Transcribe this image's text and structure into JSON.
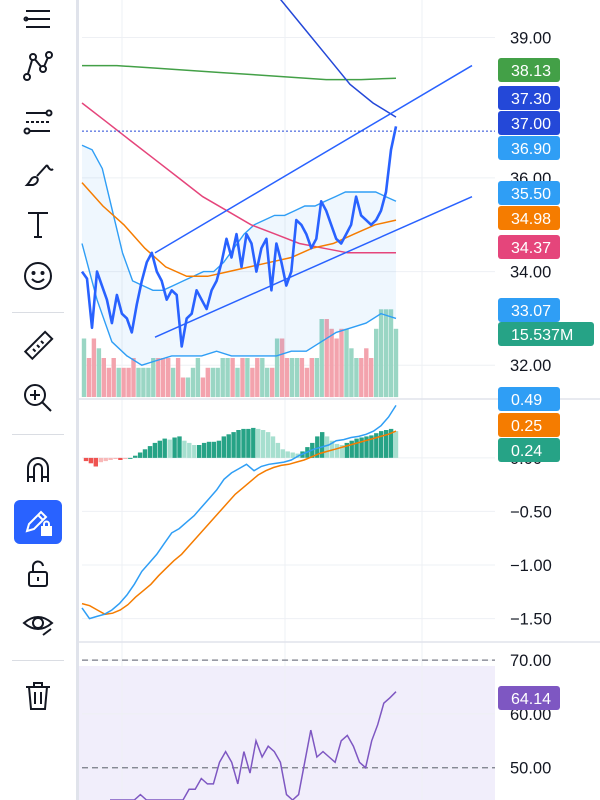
{
  "toolbar": {
    "tools": [
      {
        "name": "lines-tool-icon",
        "active": false
      },
      {
        "name": "pattern-tool-icon",
        "active": false
      },
      {
        "name": "fib-tool-icon",
        "active": false
      },
      {
        "name": "brush-tool-icon",
        "active": false
      },
      {
        "name": "text-tool-icon",
        "active": false
      },
      {
        "name": "emoji-tool-icon",
        "active": false
      },
      {
        "name": "ruler-icon",
        "active": false
      },
      {
        "name": "zoom-in-icon",
        "active": false
      },
      {
        "name": "magnet-icon",
        "active": false
      },
      {
        "name": "lock-drawing-mode-icon",
        "active": true
      },
      {
        "name": "unlock-icon",
        "active": false
      },
      {
        "name": "eye-icon",
        "active": false
      },
      {
        "name": "trash-icon",
        "active": false
      }
    ]
  },
  "chart_data": [
    {
      "type": "line",
      "pane": "price",
      "ylim": [
        31.3,
        39.8
      ],
      "axis_ticks": [
        "39.00",
        "36.00",
        "34.00",
        "32.00"
      ],
      "axis_tick_values": [
        39.0,
        36.0,
        34.0,
        32.0
      ],
      "close": [
        34.0,
        33.85,
        32.8,
        34.0,
        33.7,
        33.4,
        32.9,
        33.5,
        33.1,
        33.0,
        32.7,
        33.3,
        33.8,
        34.2,
        34.4,
        34.0,
        33.8,
        33.4,
        33.6,
        33.5,
        32.4,
        33.0,
        33.1,
        33.6,
        33.4,
        33.2,
        33.6,
        33.8,
        34.2,
        34.7,
        34.3,
        34.8,
        34.1,
        34.8,
        34.6,
        34.0,
        34.5,
        34.7,
        33.6,
        34.6,
        34.2,
        33.7,
        34.0,
        35.1,
        35.0,
        34.8,
        34.5,
        34.7,
        35.5,
        35.3,
        35.0,
        34.7,
        34.6,
        34.8,
        35.0,
        35.6,
        35.2,
        35.1,
        35.0,
        35.1,
        35.3,
        35.7,
        36.6,
        37.1
      ],
      "upper_band": [
        36.7,
        36.6,
        36.2,
        35.3,
        34.4,
        33.8,
        33.7,
        33.6,
        33.6,
        33.7,
        33.8,
        33.9,
        34.0,
        34.0,
        34.2,
        34.5,
        34.8,
        35.0,
        35.1,
        35.2,
        35.2,
        35.3,
        35.4,
        35.4,
        35.5,
        35.6,
        35.7,
        35.7,
        35.7,
        35.7,
        35.6,
        35.5
      ],
      "lower_band": [
        34.6,
        33.4,
        32.5,
        32.2,
        32.0,
        32.1,
        32.2,
        32.2,
        32.2,
        32.3,
        32.2,
        32.2,
        32.2,
        32.2,
        32.3,
        32.3,
        32.5,
        32.7,
        32.8,
        32.9,
        33.1,
        33.0
      ],
      "channel": {
        "upper": [
          [
            34.4,
            35.9
          ],
          [
            34.6,
            38.4
          ]
        ],
        "lower": [
          [
            32.6,
            33.1
          ],
          [
            34.9,
            35.6
          ]
        ]
      },
      "ma_red": [
        37.6,
        37.2,
        36.8,
        36.4,
        36.0,
        35.6,
        35.3,
        35.0,
        34.8,
        34.6,
        34.5,
        34.4,
        34.4,
        34.4
      ],
      "ma_orange": [
        35.9,
        35.4,
        35.0,
        34.5,
        34.1,
        33.9,
        33.9,
        34.0,
        34.1,
        34.2,
        34.3,
        34.5,
        34.6,
        34.8,
        35.0,
        35.1
      ],
      "ma_green": [
        38.4,
        38.4,
        38.35,
        38.3,
        38.25,
        38.2,
        38.15,
        38.1,
        38.1,
        38.13
      ],
      "ma_navy": [
        41.0,
        40.4,
        39.8,
        39.2,
        38.6,
        38.0,
        37.6,
        37.3
      ],
      "volume_hist": [
        3,
        2,
        3,
        2.5,
        2,
        1.5,
        2,
        1.5,
        1.5,
        1.5,
        2,
        1.5,
        1.5,
        1.5,
        2,
        2,
        2,
        2,
        1.5,
        2,
        1,
        1,
        1.5,
        2,
        1,
        1.5,
        1.5,
        1.5,
        2,
        2,
        2,
        1.5,
        2,
        2,
        1.5,
        2,
        2,
        1.5,
        1.5,
        3,
        3,
        2,
        2,
        2,
        2,
        1.5,
        2,
        2,
        4,
        4,
        3.5,
        3,
        3.5,
        3.5,
        2.5,
        2,
        2,
        2.5,
        2,
        3.5,
        4.5,
        4.5,
        4.5,
        3.5
      ],
      "last_price_line": 37.0,
      "badges": [
        {
          "text": "38.13",
          "color": "#43a047"
        },
        {
          "text": "37.30",
          "color": "#2448d8"
        },
        {
          "text": "37.00",
          "color": "#2448d8"
        },
        {
          "text": "36.90",
          "color": "#2f9ef5"
        },
        {
          "text": "35.50",
          "color": "#2f9ef5"
        },
        {
          "text": "34.98",
          "color": "#f57c00"
        },
        {
          "text": "34.37",
          "color": "#e5457b"
        },
        {
          "text": "33.07",
          "color": "#2f9ef5"
        },
        {
          "text": "15.537M",
          "color": "#26a386"
        }
      ]
    },
    {
      "type": "bar",
      "pane": "macd",
      "ylim": [
        -1.7,
        0.54
      ],
      "axis_ticks": [
        "0.00",
        "−0.50",
        "−1.00",
        "−1.50"
      ],
      "axis_tick_values": [
        0.0,
        -0.5,
        -1.0,
        -1.5
      ],
      "histogram": [
        -0.03,
        -0.05,
        -0.08,
        -0.04,
        -0.03,
        -0.02,
        -0.01,
        -0.02,
        -0.01,
        0.0,
        0.02,
        0.05,
        0.08,
        0.11,
        0.14,
        0.16,
        0.18,
        0.17,
        0.19,
        0.2,
        0.16,
        0.14,
        0.12,
        0.12,
        0.14,
        0.15,
        0.15,
        0.16,
        0.2,
        0.22,
        0.24,
        0.26,
        0.27,
        0.27,
        0.28,
        0.27,
        0.26,
        0.24,
        0.2,
        0.14,
        0.08,
        0.06,
        0.05,
        0.04,
        0.06,
        0.1,
        0.14,
        0.2,
        0.24,
        0.2,
        0.16,
        0.13,
        0.12,
        0.14,
        0.16,
        0.18,
        0.19,
        0.2,
        0.21,
        0.23,
        0.25,
        0.26,
        0.27,
        0.25
      ],
      "macd_line": [
        -1.4,
        -1.5,
        -1.48,
        -1.46,
        -1.42,
        -1.36,
        -1.28,
        -1.18,
        -1.06,
        -0.98,
        -0.9,
        -0.8,
        -0.7,
        -0.66,
        -0.6,
        -0.54,
        -0.46,
        -0.38,
        -0.3,
        -0.2,
        -0.14,
        -0.1,
        -0.06,
        -0.12,
        -0.08,
        -0.06,
        -0.05,
        -0.04,
        -0.02,
        0.02,
        0.05,
        0.08,
        0.1,
        0.12,
        0.16,
        0.17,
        0.19,
        0.2,
        0.22,
        0.25,
        0.3,
        0.38,
        0.49
      ],
      "signal_line": [
        -1.36,
        -1.38,
        -1.42,
        -1.46,
        -1.45,
        -1.42,
        -1.37,
        -1.3,
        -1.24,
        -1.18,
        -1.1,
        -1.03,
        -0.96,
        -0.9,
        -0.82,
        -0.74,
        -0.66,
        -0.58,
        -0.5,
        -0.42,
        -0.34,
        -0.28,
        -0.22,
        -0.16,
        -0.12,
        -0.09,
        -0.07,
        -0.06,
        -0.04,
        -0.02,
        0.01,
        0.04,
        0.06,
        0.08,
        0.1,
        0.12,
        0.14,
        0.16,
        0.18,
        0.2,
        0.22,
        0.25
      ],
      "badges": [
        {
          "text": "0.49",
          "color": "#2f9ef5"
        },
        {
          "text": "0.25",
          "color": "#f57c00"
        },
        {
          "text": "0.24",
          "color": "#26a386"
        }
      ]
    },
    {
      "type": "line",
      "pane": "rsi",
      "ylim": [
        44.0,
        73.0
      ],
      "axis_ticks": [
        "70.00",
        "60.00",
        "50.00"
      ],
      "axis_tick_values": [
        70.0,
        60.0,
        50.0
      ],
      "dashed_levels": [
        70,
        50
      ],
      "rsi": [
        44,
        44,
        44,
        44,
        44,
        45,
        44,
        44,
        44,
        44,
        44,
        44,
        44,
        46,
        46,
        48,
        47,
        47,
        51,
        53,
        51,
        47,
        53,
        49,
        55,
        52,
        54,
        53,
        51,
        45,
        44,
        45,
        51,
        57,
        52,
        53,
        52,
        51,
        55,
        56,
        54,
        51,
        50,
        55,
        58,
        62,
        63,
        64.14
      ],
      "badges": [
        {
          "text": "64.14",
          "color": "#7e57c2"
        }
      ]
    }
  ]
}
